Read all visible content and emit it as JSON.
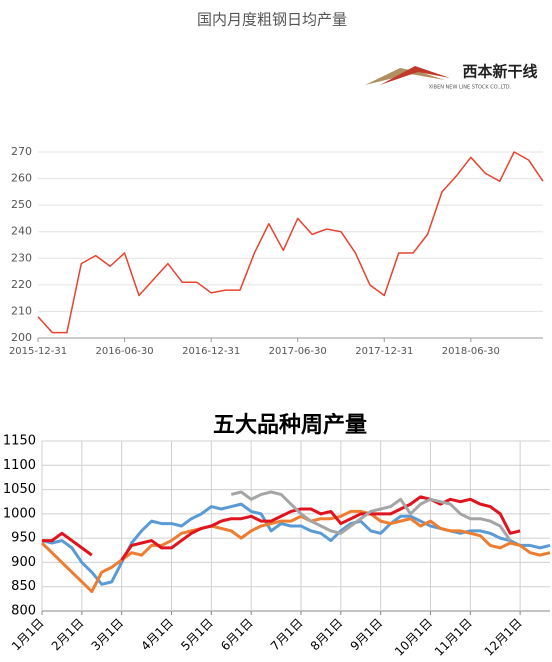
{
  "chart_data": [
    {
      "type": "line",
      "title": "国内月度粗钢日均产量",
      "logo": "西本新干线",
      "logo_sub": "XIBEN NEW LINE STOCK CO.,LTD.",
      "categories": [
        "2015-12-31",
        null,
        null,
        null,
        null,
        null,
        "2016-06-30",
        null,
        null,
        null,
        null,
        null,
        "2016-12-31",
        null,
        null,
        null,
        null,
        null,
        "2017-06-30",
        null,
        null,
        null,
        null,
        null,
        "2017-12-31",
        null,
        null,
        null,
        null,
        null,
        "2018-06-30",
        null,
        null,
        null,
        null,
        null
      ],
      "values": [
        208,
        202,
        202,
        228,
        231,
        227,
        232,
        216,
        222,
        228,
        221,
        221,
        217,
        218,
        218,
        232,
        243,
        233,
        245,
        239,
        241,
        240,
        232,
        220,
        216,
        232,
        232,
        239,
        255,
        261,
        268,
        262,
        259,
        270,
        267,
        259
      ],
      "color": "#e8432e",
      "ylim": [
        200,
        270
      ],
      "yticks": [
        200,
        210,
        220,
        230,
        240,
        250,
        260,
        270
      ],
      "grid": true
    },
    {
      "type": "line",
      "title": "五大品种周产量",
      "categories": [
        "1月1日",
        null,
        null,
        null,
        "2月1日",
        null,
        null,
        null,
        "3月1日",
        null,
        null,
        null,
        null,
        "4月1日",
        null,
        null,
        null,
        "5月1日",
        null,
        null,
        null,
        "6月1日",
        null,
        null,
        null,
        null,
        "7月1日",
        null,
        null,
        null,
        "8月1日",
        null,
        null,
        null,
        "9月1日",
        null,
        null,
        null,
        null,
        "10月1日",
        null,
        null,
        null,
        "11月1日",
        null,
        null,
        null,
        null,
        "12月1日",
        null,
        null,
        null
      ],
      "series": [
        {
          "color": "#5b9bd5",
          "values": [
            945,
            940,
            945,
            930,
            900,
            880,
            855,
            860,
            900,
            940,
            965,
            985,
            980,
            980,
            975,
            990,
            1000,
            1015,
            1010,
            1015,
            1020,
            1005,
            1000,
            965,
            980,
            975,
            975,
            965,
            960,
            945,
            965,
            980,
            985,
            965,
            960,
            980,
            995,
            995,
            985,
            975,
            970,
            965,
            960,
            965,
            965,
            960,
            950,
            945,
            935,
            935,
            930,
            935
          ]
        },
        {
          "color": "#ed7d31",
          "values": [
            940,
            920,
            900,
            880,
            860,
            840,
            880,
            890,
            905,
            920,
            915,
            935,
            935,
            945,
            960,
            965,
            970,
            975,
            970,
            965,
            950,
            965,
            975,
            980,
            985,
            985,
            995,
            985,
            990,
            990,
            995,
            1005,
            1005,
            1000,
            985,
            980,
            985,
            990,
            975,
            985,
            970,
            965,
            965,
            960,
            955,
            935,
            930,
            940,
            935,
            920,
            915,
            920
          ]
        },
        {
          "color": "#e0141e",
          "values": [
            945,
            945,
            960,
            945,
            930,
            915,
            null,
            null,
            905,
            935,
            940,
            945,
            930,
            930,
            945,
            960,
            970,
            975,
            985,
            990,
            990,
            995,
            985,
            985,
            995,
            1005,
            1010,
            1010,
            1000,
            1005,
            980,
            990,
            1000,
            1000,
            1000,
            1000,
            1010,
            1020,
            1035,
            1030,
            1020,
            1030,
            1025,
            1030,
            1020,
            1015,
            1000,
            960,
            965,
            null,
            null,
            null
          ]
        },
        {
          "color": "#a5a5a5",
          "values": [
            null,
            null,
            null,
            null,
            null,
            null,
            null,
            null,
            null,
            null,
            null,
            null,
            null,
            null,
            null,
            null,
            null,
            null,
            null,
            1040,
            1045,
            1030,
            1040,
            1045,
            1040,
            1020,
            1000,
            985,
            975,
            965,
            960,
            975,
            990,
            1005,
            1010,
            1015,
            1030,
            1000,
            1020,
            1030,
            1025,
            1020,
            1000,
            990,
            990,
            985,
            975,
            945,
            null,
            null,
            null,
            null
          ]
        }
      ],
      "ylim": [
        800,
        1150
      ],
      "yticks": [
        800,
        850,
        900,
        950,
        1000,
        1050,
        1100,
        1150
      ],
      "grid": true,
      "xgrid": true
    }
  ]
}
